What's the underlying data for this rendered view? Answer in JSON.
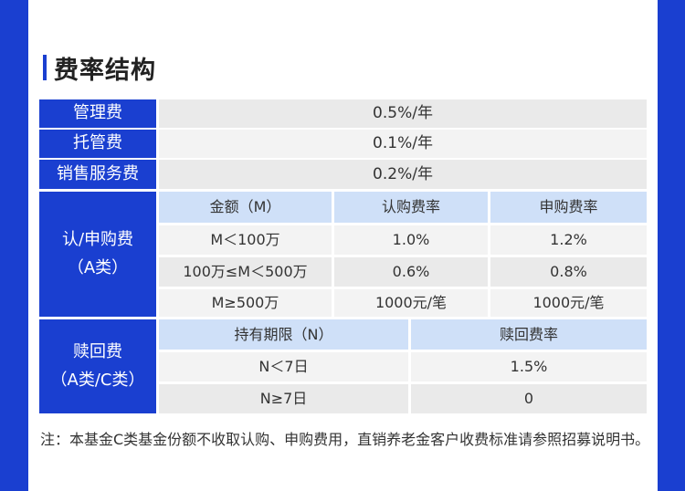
{
  "title": "费率结构",
  "rows": {
    "management": {
      "label": "管理费",
      "value": "0.5%/年"
    },
    "custody": {
      "label": "托管费",
      "value": "0.1%/年"
    },
    "sales": {
      "label": "销售服务费",
      "value": "0.2%/年"
    }
  },
  "purchase": {
    "label_line1": "认/申购费",
    "label_line2": "（A类）",
    "headers": [
      "金额（M）",
      "认购费率",
      "申购费率"
    ],
    "rows": [
      [
        "M＜100万",
        "1.0%",
        "1.2%"
      ],
      [
        "100万≤M＜500万",
        "0.6%",
        "0.8%"
      ],
      [
        "M≥500万",
        "1000元/笔",
        "1000元/笔"
      ]
    ]
  },
  "redemption": {
    "label_line1": "赎回费",
    "label_line2": "（A类/C类）",
    "headers": [
      "持有期限（N）",
      "赎回费率"
    ],
    "rows": [
      [
        "N＜7日",
        "1.5%"
      ],
      [
        "N≥7日",
        "0"
      ]
    ]
  },
  "note": "注：本基金C类基金份额不收取认购、申购费用，直销养老金客户收费标准请参照招募说明书。",
  "colors": {
    "accent": "#1a3fd0",
    "subheader": "#cfe0f8",
    "cell": "#eaeaea"
  }
}
